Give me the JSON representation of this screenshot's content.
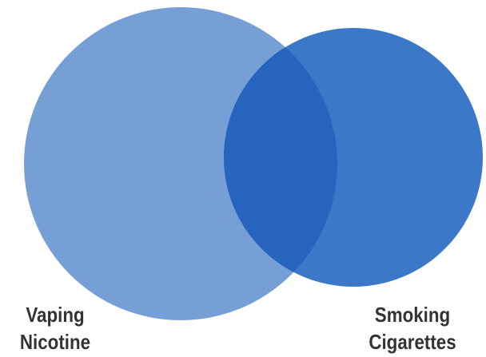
{
  "diagram": {
    "type": "venn",
    "sets": [
      {
        "id": "a",
        "label_lines": [
          "Vaping",
          "Nicotine"
        ],
        "color": "#769FD6"
      },
      {
        "id": "b",
        "label_lines": [
          "Smoking",
          "Cigarettes"
        ],
        "color": "#3B78C8"
      }
    ],
    "overlap_color": "#2764BE",
    "label_color": "#333333"
  }
}
